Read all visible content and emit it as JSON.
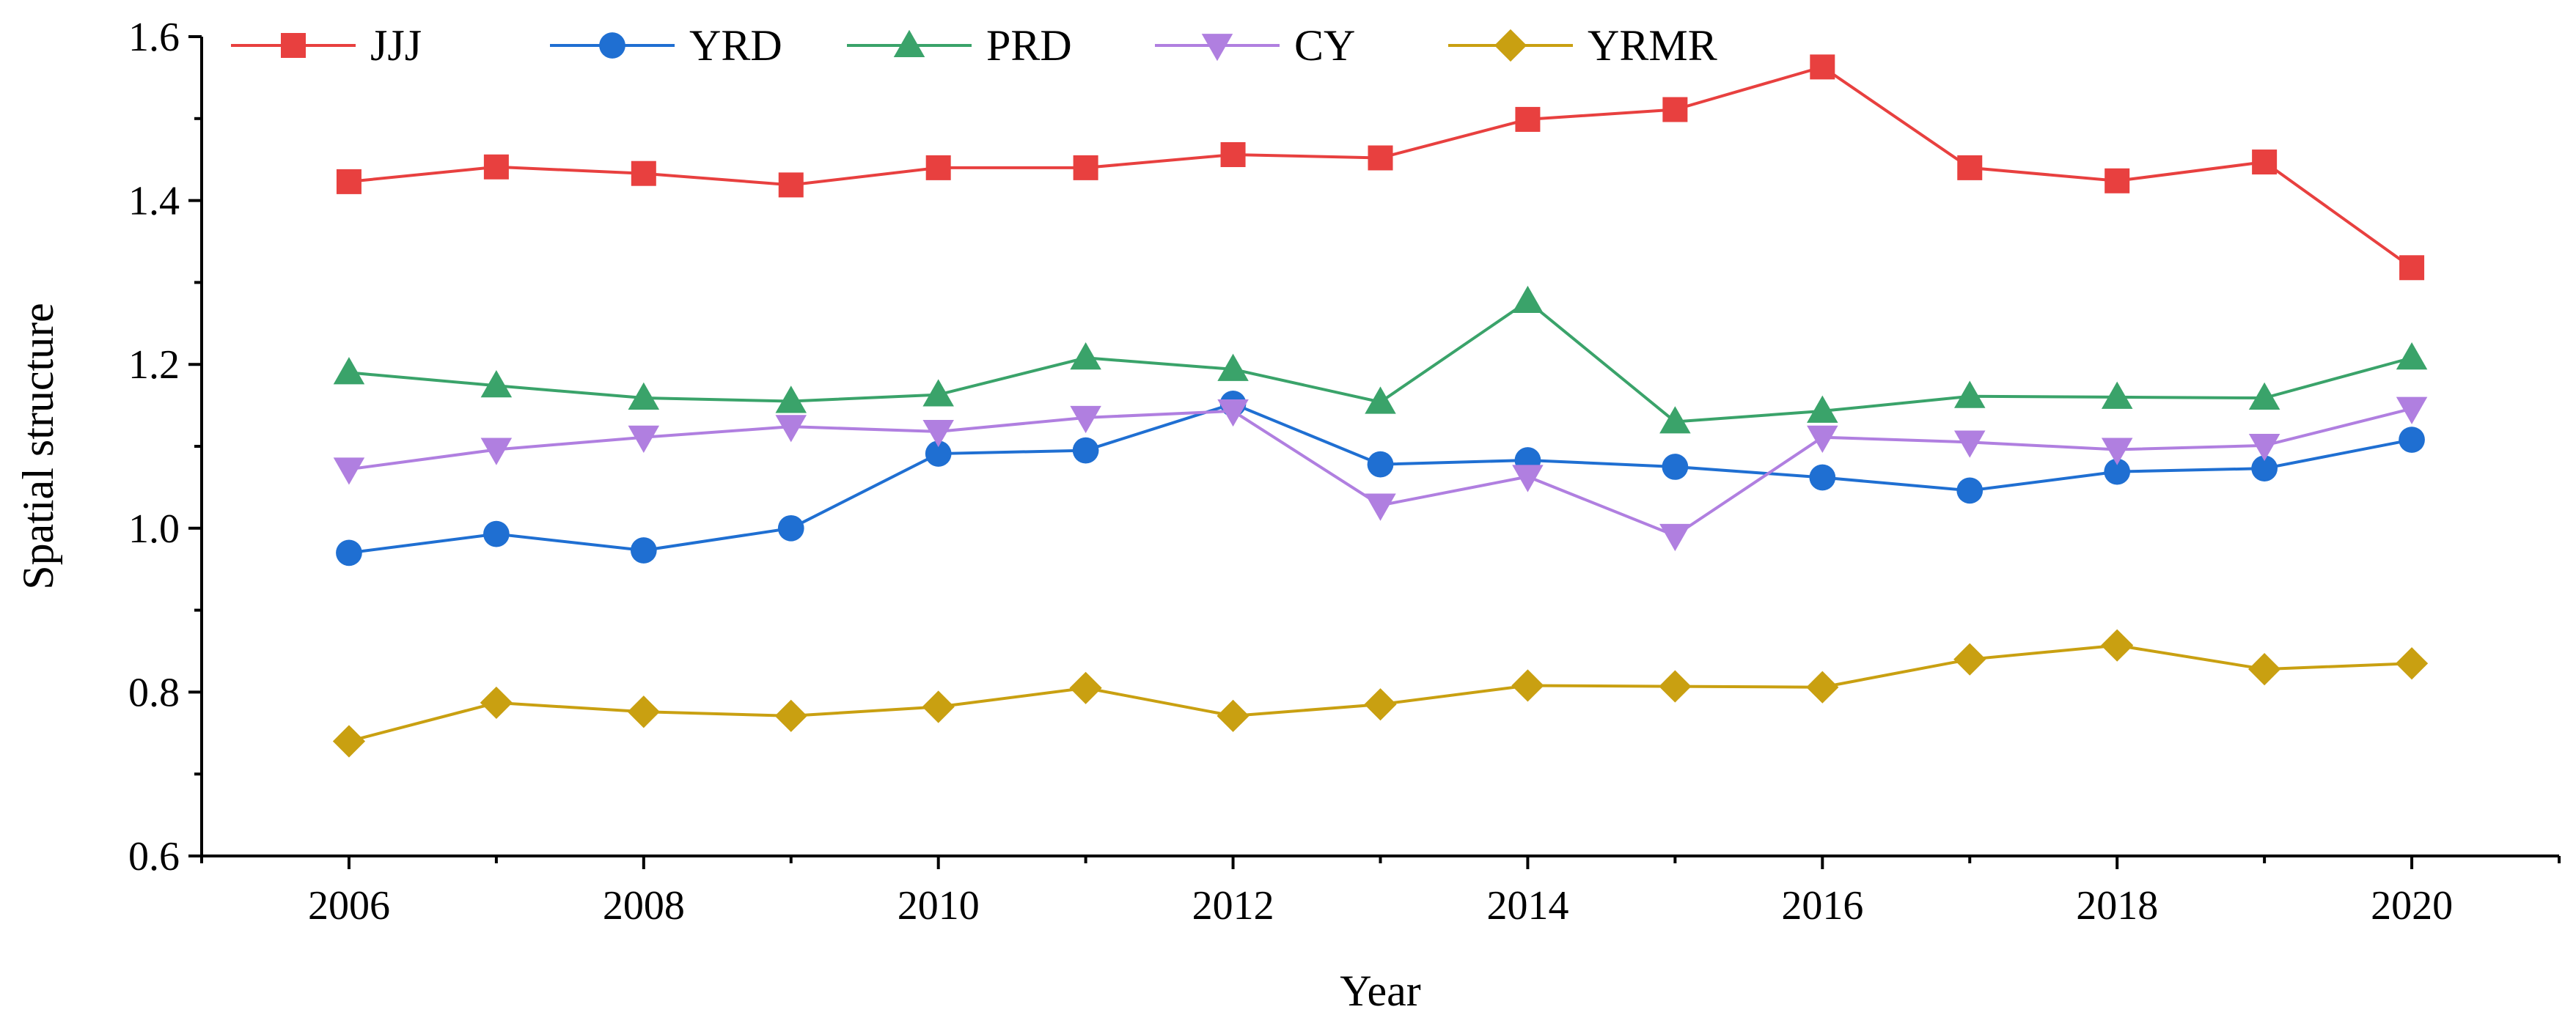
{
  "chart_data": {
    "type": "line",
    "title": "",
    "xlabel": "Year",
    "ylabel": "Spatial structure",
    "xlim": [
      2005,
      2021
    ],
    "ylim": [
      0.6,
      1.6
    ],
    "x": [
      2006,
      2007,
      2008,
      2009,
      2010,
      2011,
      2012,
      2013,
      2014,
      2015,
      2016,
      2017,
      2018,
      2019,
      2020
    ],
    "x_ticks": [
      2006,
      2008,
      2010,
      2012,
      2014,
      2016,
      2018,
      2020
    ],
    "x_tick_labels": [
      "2006",
      "2008",
      "2010",
      "2012",
      "2014",
      "2016",
      "2018",
      "2020"
    ],
    "y_ticks": [
      0.6,
      0.8,
      1.0,
      1.2,
      1.4,
      1.6
    ],
    "y_tick_labels": [
      "0.6",
      "0.8",
      "1.0",
      "1.2",
      "1.4",
      "1.6"
    ],
    "grid": false,
    "legend_position": "top-left",
    "series": [
      {
        "name": "JJJ",
        "color": "#e8403f",
        "marker": "square",
        "values": [
          1.423,
          1.441,
          1.433,
          1.419,
          1.44,
          1.44,
          1.456,
          1.452,
          1.499,
          1.511,
          1.563,
          1.44,
          1.424,
          1.447,
          1.318
        ]
      },
      {
        "name": "YRD",
        "color": "#1f6fd2",
        "marker": "circle",
        "values": [
          0.97,
          0.993,
          0.973,
          1.0,
          1.091,
          1.095,
          1.152,
          1.078,
          1.083,
          1.075,
          1.062,
          1.046,
          1.069,
          1.073,
          1.108
        ]
      },
      {
        "name": "PRD",
        "color": "#3aa36a",
        "marker": "triangle-up",
        "values": [
          1.19,
          1.174,
          1.159,
          1.155,
          1.163,
          1.208,
          1.194,
          1.154,
          1.277,
          1.13,
          1.143,
          1.161,
          1.16,
          1.159,
          1.208
        ]
      },
      {
        "name": "CY",
        "color": "#b07fe0",
        "marker": "triangle-down",
        "values": [
          1.072,
          1.096,
          1.111,
          1.124,
          1.118,
          1.135,
          1.143,
          1.028,
          1.063,
          0.991,
          1.111,
          1.105,
          1.096,
          1.101,
          1.146
        ]
      },
      {
        "name": "YRMR",
        "color": "#c9a011",
        "marker": "diamond",
        "values": [
          0.74,
          0.787,
          0.776,
          0.771,
          0.782,
          0.805,
          0.771,
          0.785,
          0.808,
          0.807,
          0.806,
          0.84,
          0.857,
          0.828,
          0.835
        ]
      }
    ]
  }
}
